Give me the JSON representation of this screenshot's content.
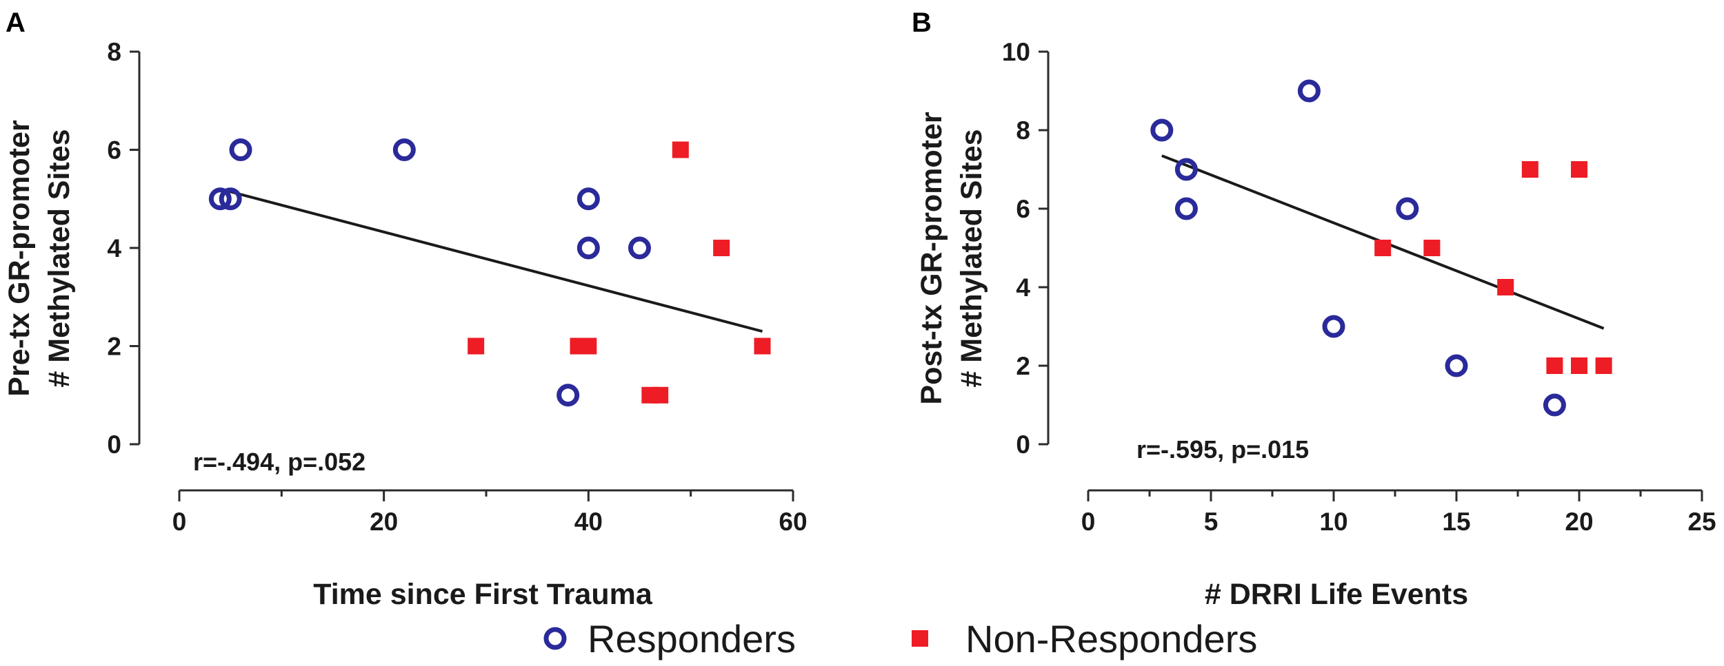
{
  "legend": {
    "responders_label": "Responders",
    "nonresponders_label": "Non-Responders",
    "placement": "bottom-center"
  },
  "colors": {
    "responders": "#2a2a9a",
    "nonresponders": "#ee1c25",
    "axis": "#2b2b2b",
    "fit_line": "#1a1a1a"
  },
  "chart_data": [
    {
      "type": "scatter",
      "panel_label": "A",
      "xlabel": "Time since First Trauma",
      "ylabel_line1": "Pre-tx GR-promoter",
      "ylabel_line2": "# Methylated Sites",
      "xlim": [
        0,
        60
      ],
      "ylim": [
        0,
        8
      ],
      "x_ticks": [
        0,
        20,
        40,
        60
      ],
      "x_minor_ticks": [
        10,
        30,
        50
      ],
      "y_ticks": [
        0,
        2,
        4,
        6,
        8
      ],
      "grid": false,
      "annotation": "r=-.494, p=.052",
      "series": [
        {
          "name": "Responders",
          "marker": "circle",
          "points": [
            [
              4,
              5
            ],
            [
              5,
              5
            ],
            [
              6,
              6
            ],
            [
              22,
              6
            ],
            [
              40,
              5
            ],
            [
              40,
              4
            ],
            [
              45,
              4
            ],
            [
              38,
              1
            ]
          ]
        },
        {
          "name": "Non-Responders",
          "marker": "square",
          "points": [
            [
              49,
              6
            ],
            [
              53,
              4
            ],
            [
              29,
              2
            ],
            [
              39,
              2
            ],
            [
              40,
              2
            ],
            [
              57,
              2
            ],
            [
              46,
              1
            ],
            [
              47,
              1
            ]
          ]
        }
      ],
      "fit_line": [
        [
          4,
          5.2
        ],
        [
          57,
          2.3
        ]
      ]
    },
    {
      "type": "scatter",
      "panel_label": "B",
      "xlabel": "# DRRI Life Events",
      "ylabel_line1": "Post-tx GR-promoter",
      "ylabel_line2": "# Methylated Sites",
      "xlim": [
        0,
        25
      ],
      "ylim": [
        0,
        10
      ],
      "x_ticks": [
        0,
        5,
        10,
        15,
        20,
        25
      ],
      "x_minor_ticks": [
        2.5,
        7.5,
        12.5,
        17.5,
        22.5
      ],
      "y_ticks": [
        0,
        2,
        4,
        6,
        8,
        10
      ],
      "grid": false,
      "annotation": "r=-.595, p=.015",
      "series": [
        {
          "name": "Responders",
          "marker": "circle",
          "points": [
            [
              3,
              8
            ],
            [
              4,
              7
            ],
            [
              4,
              6
            ],
            [
              9,
              9
            ],
            [
              13,
              6
            ],
            [
              10,
              3
            ],
            [
              15,
              2
            ],
            [
              19,
              1
            ]
          ]
        },
        {
          "name": "Non-Responders",
          "marker": "square",
          "points": [
            [
              12,
              5
            ],
            [
              14,
              5
            ],
            [
              17,
              4
            ],
            [
              18,
              7
            ],
            [
              20,
              7
            ],
            [
              19,
              2
            ],
            [
              20,
              2
            ],
            [
              21,
              2
            ]
          ]
        }
      ],
      "fit_line": [
        [
          3,
          7.35
        ],
        [
          21,
          2.95
        ]
      ]
    }
  ]
}
